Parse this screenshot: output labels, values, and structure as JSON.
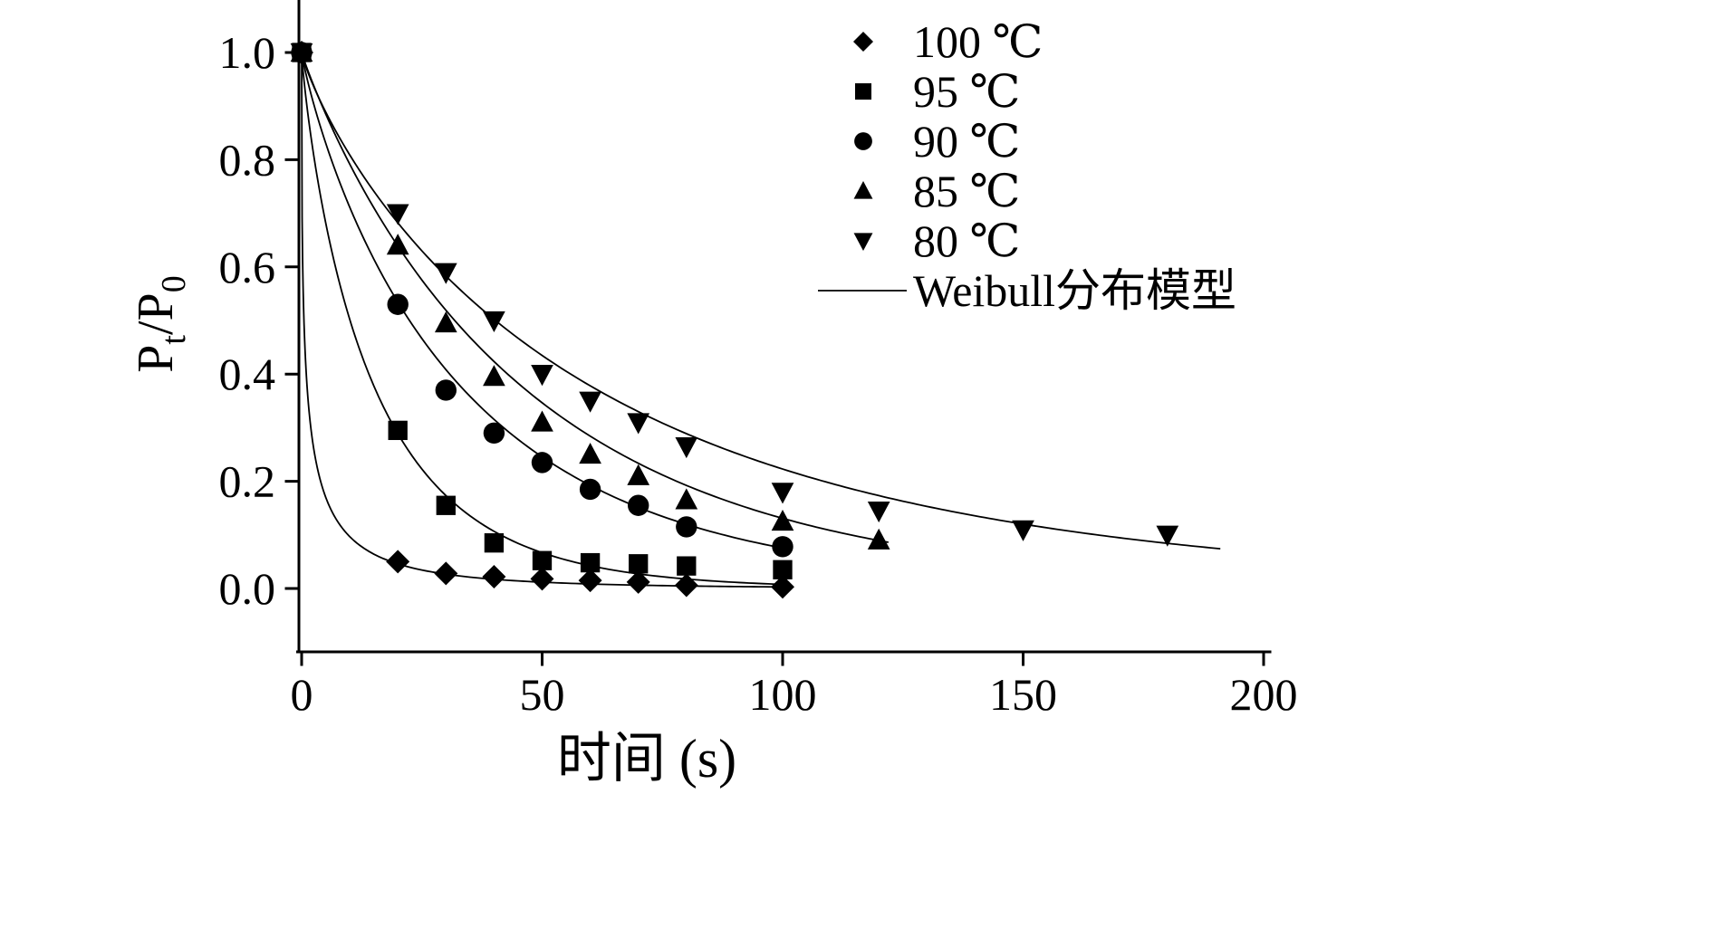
{
  "figure": {
    "background": "#ffffff",
    "ink": "#000000"
  },
  "chart_data": {
    "type": "scatter",
    "title": "",
    "xlabel": "时间 (s)",
    "ylabel": "Pt/P0",
    "ylabel_parts": [
      {
        "t": "P",
        "sub": false
      },
      {
        "t": "t",
        "sub": true
      },
      {
        "t": "/P",
        "sub": false
      },
      {
        "t": "0",
        "sub": true
      }
    ],
    "xlim": [
      0,
      200
    ],
    "ylim": [
      0.0,
      1.0
    ],
    "x_ticks": [
      0,
      50,
      100,
      150,
      200
    ],
    "y_ticks": [
      0.0,
      0.2,
      0.4,
      0.6,
      0.8,
      1.0
    ],
    "x_tick_labels": [
      "0",
      "50",
      "100",
      "150",
      "200"
    ],
    "y_tick_labels": [
      "0.0",
      "0.2",
      "0.4",
      "0.6",
      "0.8",
      "1.0"
    ],
    "grid": false,
    "legend_position": "top-right",
    "legend_fit_label": "Weibull分布模型",
    "series": [
      {
        "name": "100 ℃",
        "marker": "diamond",
        "x": [
          0,
          20,
          30,
          40,
          50,
          60,
          70,
          80,
          100
        ],
        "y": [
          1.0,
          0.05,
          0.028,
          0.022,
          0.018,
          0.015,
          0.012,
          0.006,
          0.003
        ],
        "fit": {
          "model": "weibull",
          "alpha": 1.2,
          "beta": 0.4,
          "t_end": 100
        }
      },
      {
        "name": "95 ℃",
        "marker": "square",
        "x": [
          0,
          20,
          30,
          40,
          50,
          60,
          70,
          80,
          100
        ],
        "y": [
          1.0,
          0.295,
          0.155,
          0.085,
          0.052,
          0.048,
          0.046,
          0.042,
          0.035
        ],
        "fit": {
          "model": "weibull",
          "alpha": 15.5,
          "beta": 0.85,
          "t_end": 101
        }
      },
      {
        "name": "90 ℃",
        "marker": "circle",
        "x": [
          0,
          20,
          30,
          40,
          50,
          60,
          70,
          80,
          100
        ],
        "y": [
          1.0,
          0.53,
          0.37,
          0.29,
          0.235,
          0.185,
          0.155,
          0.115,
          0.078
        ],
        "fit": {
          "model": "weibull",
          "alpha": 34,
          "beta": 0.88,
          "t_end": 102
        }
      },
      {
        "name": "85 ℃",
        "marker": "triangle-up",
        "x": [
          0,
          20,
          30,
          40,
          50,
          60,
          70,
          80,
          100,
          120
        ],
        "y": [
          1.0,
          0.64,
          0.495,
          0.395,
          0.31,
          0.25,
          0.21,
          0.165,
          0.125,
          0.09
        ],
        "fit": {
          "model": "weibull",
          "alpha": 47,
          "beta": 0.94,
          "t_end": 122
        }
      },
      {
        "name": "80 ℃",
        "marker": "triangle-down",
        "x": [
          0,
          20,
          30,
          40,
          50,
          60,
          70,
          80,
          100,
          120,
          150,
          180
        ],
        "y": [
          1.0,
          0.7,
          0.59,
          0.5,
          0.4,
          0.35,
          0.31,
          0.265,
          0.18,
          0.145,
          0.11,
          0.1
        ],
        "fit": {
          "model": "weibull",
          "alpha": 62,
          "beta": 0.85,
          "t_end": 191
        }
      }
    ]
  }
}
